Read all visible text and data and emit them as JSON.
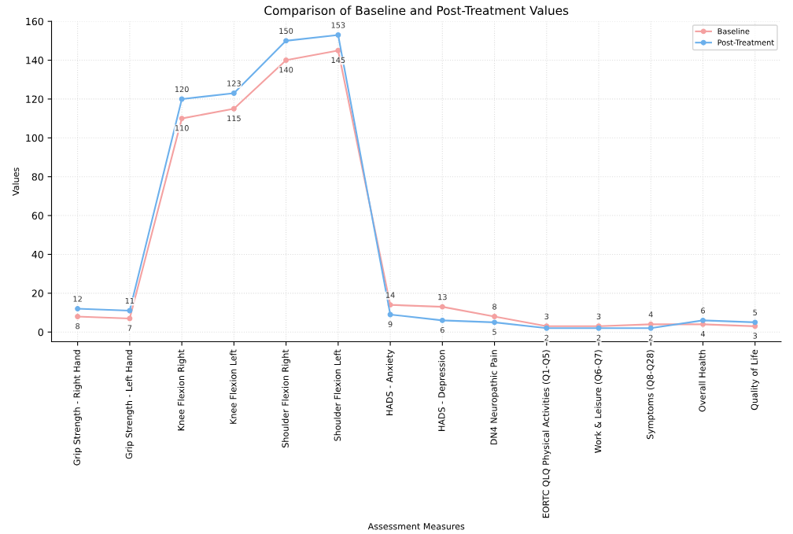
{
  "chart_data": {
    "type": "line",
    "title": "Comparison of Baseline and Post-Treatment Values",
    "xlabel": "Assessment Measures",
    "ylabel": "Values",
    "categories": [
      "Grip Strength - Right Hand",
      "Grip Strength - Left Hand",
      "Knee Flexion Right",
      "Knee Flexion Left",
      "Shoulder Flexion Right",
      "Shoulder Flexion Left",
      "HADS - Anxiety",
      "HADS - Depression",
      "DN4 Neuropathic Pain",
      "EORTC QLQ Physical Activities (Q1-Q5)",
      "Work & Leisure (Q6-Q7)",
      "Symptoms (Q8-Q28)",
      "Overall Health",
      "Quality of Life"
    ],
    "series": [
      {
        "name": "Baseline",
        "color": "#f4a1a1",
        "values": [
          8,
          7,
          110,
          115,
          140,
          145,
          14,
          13,
          8,
          3,
          3,
          4,
          4,
          3
        ]
      },
      {
        "name": "Post-Treatment",
        "color": "#6cb0ec",
        "values": [
          12,
          11,
          120,
          123,
          150,
          153,
          9,
          6,
          5,
          2,
          2,
          2,
          6,
          5
        ]
      }
    ],
    "ylim": [
      -5,
      160
    ],
    "yticks": [
      0,
      20,
      40,
      60,
      80,
      100,
      120,
      140,
      160
    ],
    "grid": true,
    "legend": "top right",
    "marker": "circle",
    "line_style": "solid",
    "data_labels": true
  }
}
